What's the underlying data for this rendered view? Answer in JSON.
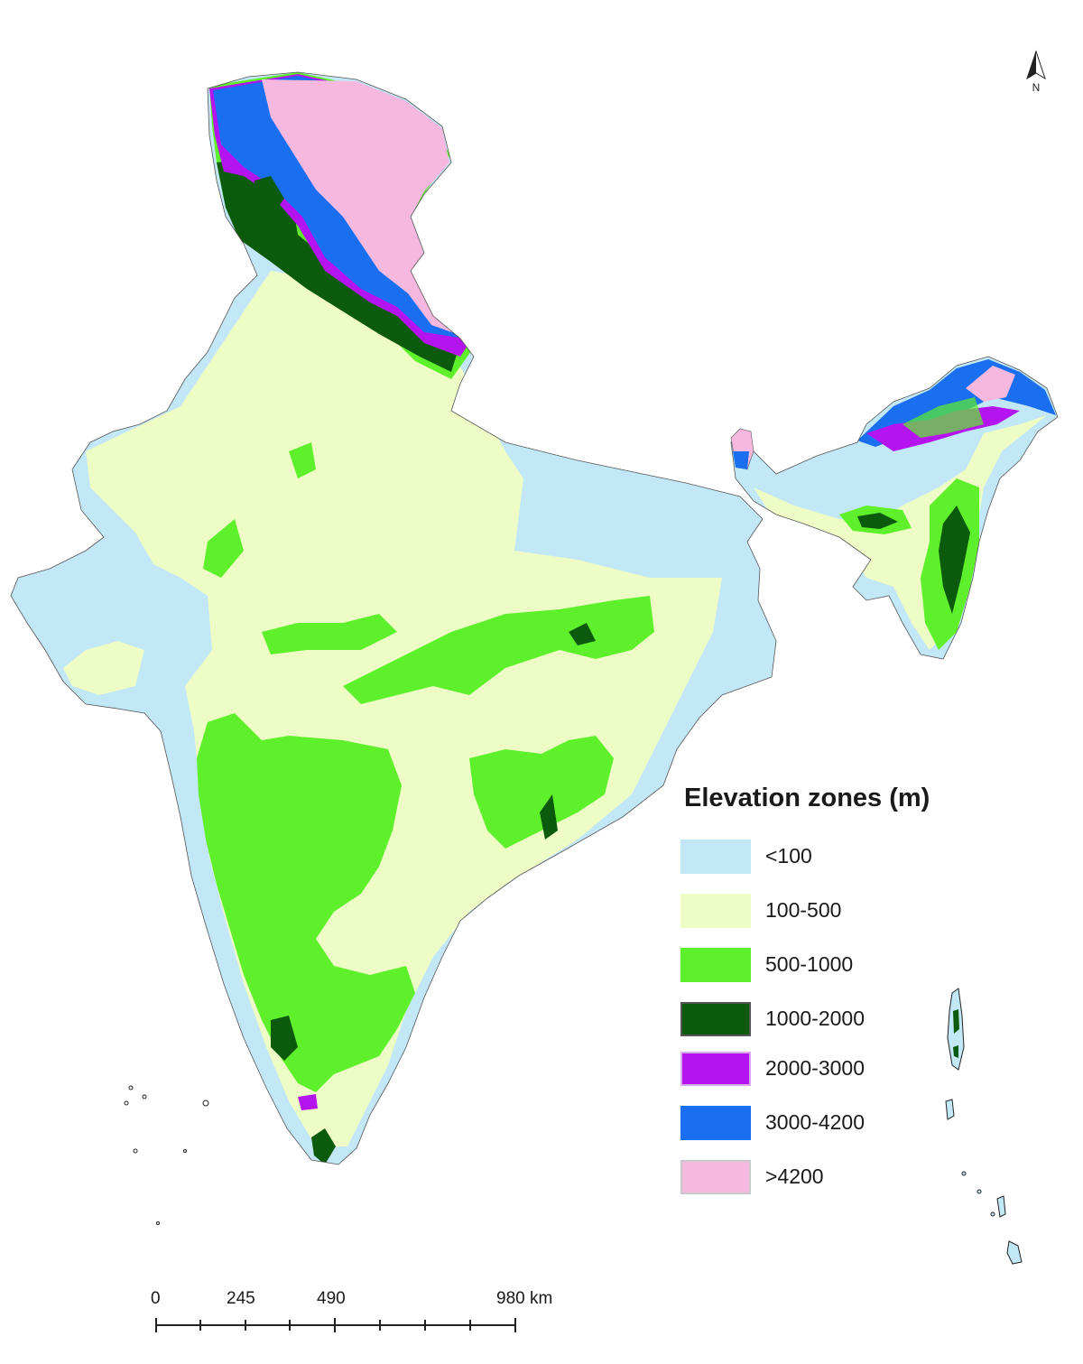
{
  "legend": {
    "title": "Elevation zones (m)",
    "items": [
      {
        "label": "<100",
        "color": "#c2e7f7"
      },
      {
        "label": "100-500",
        "color": "#eefcc6"
      },
      {
        "label": "500-1000",
        "color": "#5ef02a"
      },
      {
        "label": "1000-2000",
        "color": "#0c5a0c"
      },
      {
        "label": "2000-3000",
        "color": "#b414f0"
      },
      {
        "label": "3000-4200",
        "color": "#1a6ef0"
      },
      {
        "label": ">4200",
        "color": "#f7b8e0"
      }
    ]
  },
  "scale_bar": {
    "labels": [
      "0",
      "245",
      "490",
      "980 km"
    ]
  },
  "north_arrow": {
    "label": "N",
    "icon": "north-arrow-icon"
  }
}
